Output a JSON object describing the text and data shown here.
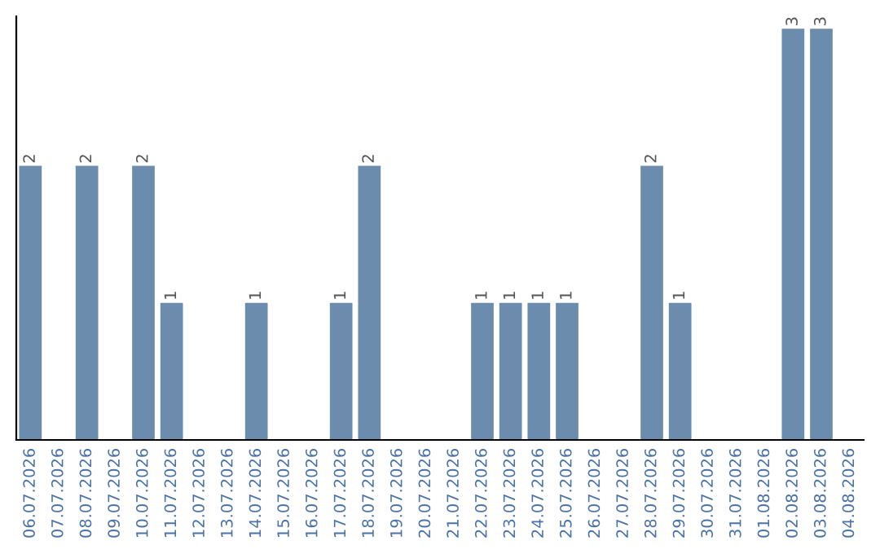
{
  "chart_data": {
    "type": "bar",
    "categories": [
      "06.07.2026",
      "07.07.2026",
      "08.07.2026",
      "09.07.2026",
      "10.07.2026",
      "11.07.2026",
      "12.07.2026",
      "13.07.2026",
      "14.07.2026",
      "15.07.2026",
      "16.07.2026",
      "17.07.2026",
      "18.07.2026",
      "19.07.2026",
      "20.07.2026",
      "21.07.2026",
      "22.07.2026",
      "23.07.2026",
      "24.07.2026",
      "25.07.2026",
      "26.07.2026",
      "27.07.2026",
      "28.07.2026",
      "29.07.2026",
      "30.07.2026",
      "31.07.2026",
      "01.08.2026",
      "02.08.2026",
      "03.08.2026",
      "04.08.2026"
    ],
    "values": [
      2,
      0,
      2,
      0,
      2,
      1,
      0,
      0,
      1,
      0,
      0,
      1,
      2,
      0,
      0,
      0,
      1,
      1,
      1,
      1,
      0,
      0,
      2,
      1,
      0,
      0,
      0,
      3,
      3,
      0
    ],
    "value_labels": [
      "2",
      null,
      "2",
      null,
      "2",
      "1",
      null,
      null,
      "1",
      null,
      null,
      "1",
      "2",
      null,
      null,
      null,
      "1",
      "1",
      "1",
      "1",
      null,
      null,
      "2",
      "1",
      null,
      null,
      null,
      "3",
      "3",
      null
    ],
    "color": "#6b8cad",
    "tick_labels": "x",
    "grid": false,
    "legend": false
  }
}
